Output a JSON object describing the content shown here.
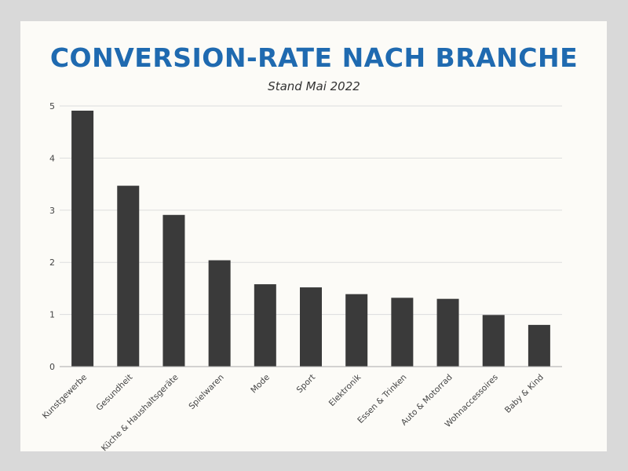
{
  "title": "CONVERSION-RATE NACH BRANCHE",
  "subtitle": "Stand Mai 2022",
  "colors": {
    "background": "#d9d9d9",
    "card": "#fcfbf7",
    "title": "#1f6ab0",
    "bar": "#3a3a3a",
    "grid": "#dddddd"
  },
  "chart_data": {
    "type": "bar",
    "title": "CONVERSION-RATE NACH BRANCHE",
    "subtitle": "Stand Mai 2022",
    "categories": [
      "Kunstgewerbe",
      "Gesundheit",
      "Küche & Haushaltsgeräte",
      "Spielwaren",
      "Mode",
      "Sport",
      "Elektronik",
      "Essen & Trinken",
      "Auto & Motorrad",
      "Wohnaccessoires",
      "Baby & Kind"
    ],
    "values": [
      4.91,
      3.47,
      2.91,
      2.04,
      1.58,
      1.52,
      1.39,
      1.32,
      1.3,
      0.99,
      0.8
    ],
    "yticks": [
      "0",
      "1",
      "2",
      "3",
      "4",
      "5"
    ],
    "xlabel": "",
    "ylabel": "",
    "ylim": [
      0,
      5
    ],
    "grid": true,
    "legend": "none"
  }
}
